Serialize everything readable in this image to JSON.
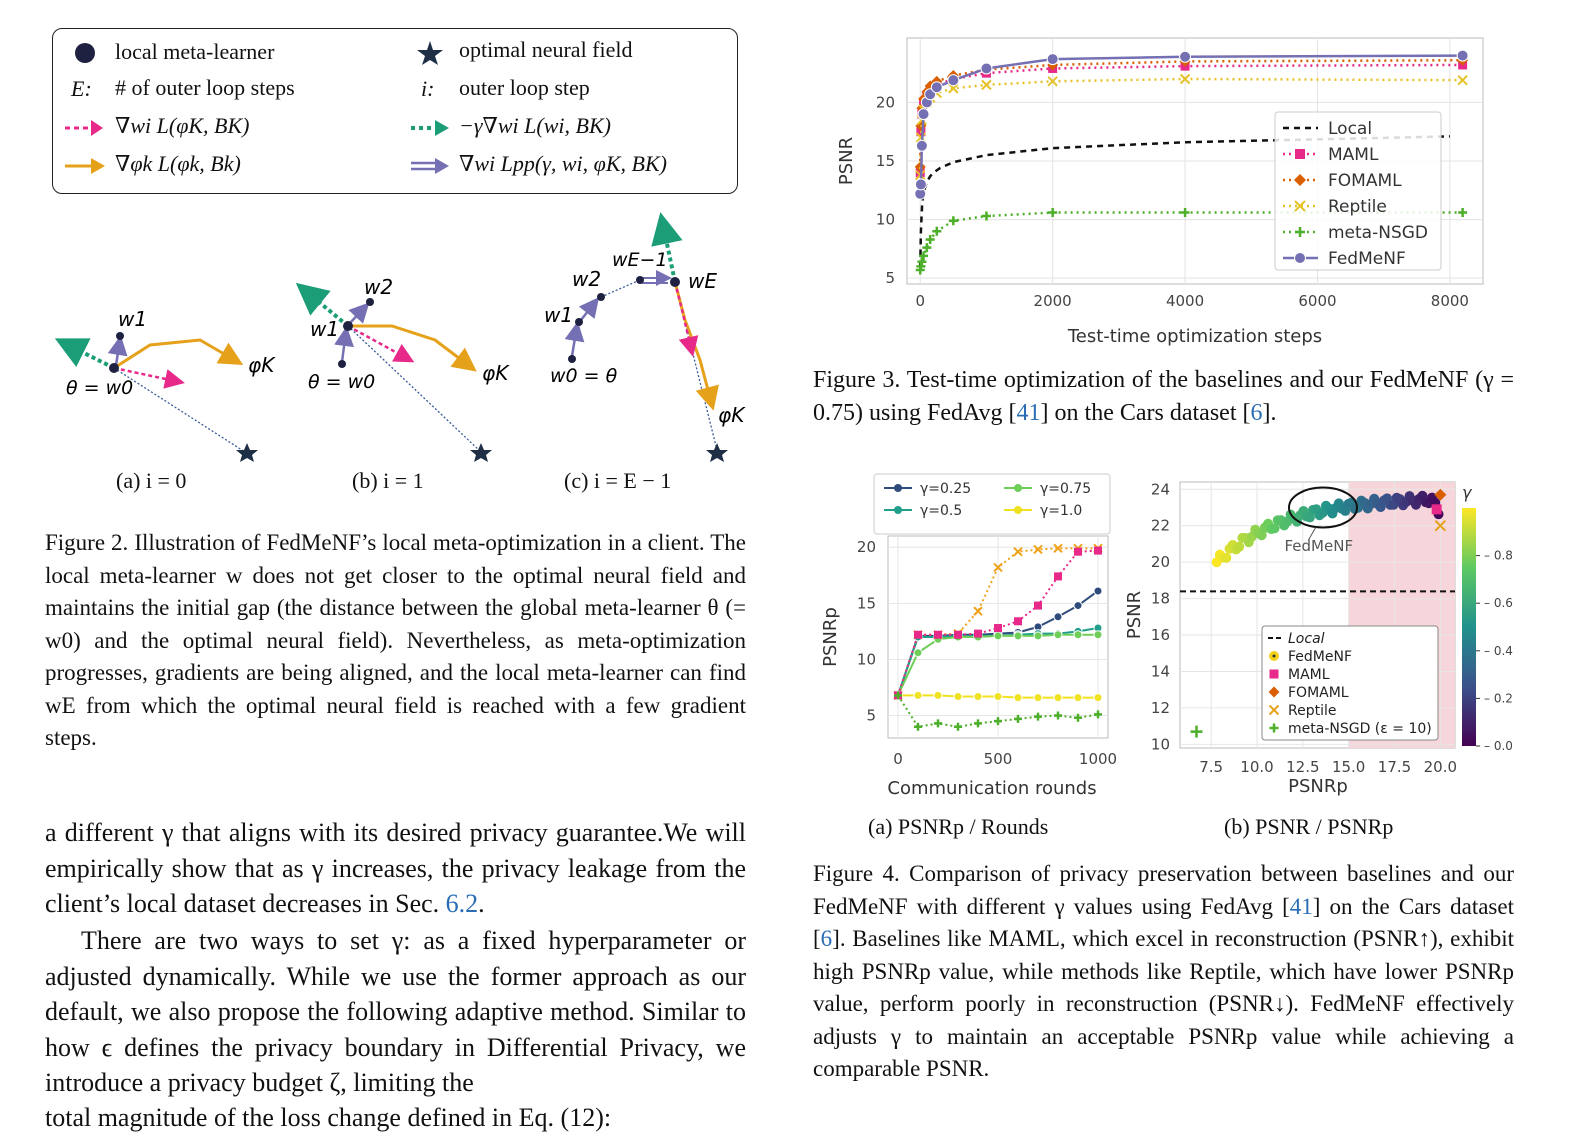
{
  "fig2": {
    "legend": [
      {
        "icon": "dot-icon",
        "label": "local meta-learner"
      },
      {
        "icon": "star-icon",
        "label": "optimal neural field"
      },
      {
        "icon": "E:",
        "label": "# of outer loop steps"
      },
      {
        "icon": "i:",
        "label": "outer loop step"
      },
      {
        "icon": "pink-dashed-arrow-icon",
        "label": "∇wi L(φK, BK)"
      },
      {
        "icon": "green-dotted-arrow-icon",
        "label": "−γ∇wi L(wi, BK)"
      },
      {
        "icon": "orange-arrow-icon",
        "label": "∇φk L(φk, Bk)"
      },
      {
        "icon": "purple-double-arrow-icon",
        "label": "∇wi Lpp(γ, wi, φK, BK)"
      }
    ],
    "panel_labels": {
      "a_w1": "w1",
      "a_theta": "θ = w0",
      "a_phi": "φK",
      "b_w1": "w1",
      "b_w2": "w2",
      "b_theta": "θ = w0",
      "b_phi": "φK",
      "c_w0": "w0 = θ",
      "c_w1": "w1",
      "c_w2": "w2",
      "c_wE1": "wE−1",
      "c_wE": "wE",
      "c_phi": "φK"
    },
    "subcaptions": [
      "(a) i = 0",
      "(b) i = 1",
      "(c) i = E − 1"
    ],
    "caption_label": "Figure 2.",
    "caption": "Illustration of FedMeNF’s local meta-optimization in a client. The local meta-learner w does not get closer to the optimal neural field and maintains the initial gap (the distance between the global meta-learner θ (= w0) and the optimal neural field). Nevertheless, as meta-optimization progresses, gradients are being aligned, and the local meta-learner can find wE from which the optimal neural field is reached with a few gradient steps."
  },
  "body_text": {
    "p1_a": "a different γ that aligns with its desired privacy guarantee.We will empirically show that as γ increases, the privacy leakage from the client’s local dataset decreases in Sec. ",
    "p1_ref": "6.2",
    "p1_b": ".",
    "p2": "There are two ways to set γ: as a fixed hyperparameter or adjusted dynamically. While we use the former approach as our default, we also propose the following adaptive method. Similar to how ϵ defines the privacy boundary in Differential Privacy, we introduce a privacy budget ζ, limiting the",
    "p3_partial": "total magnitude of the loss change defined in Eq. (12):"
  },
  "fig3": {
    "caption_label": "Figure 3.",
    "caption_a": "Test-time optimization of the baselines and our FedMeNF (γ = 0.75) using FedAvg [",
    "ref1": "41",
    "caption_b": "] on the Cars dataset [",
    "ref2": "6",
    "caption_c": "]."
  },
  "fig4": {
    "subcaptions": [
      "(a) PSNRp / Rounds",
      "(b) PSNR / PSNRp"
    ],
    "caption_label": "Figure 4.",
    "caption_a": "Comparison of privacy preservation between baselines and our FedMeNF with different γ values using FedAvg [",
    "ref1": "41",
    "caption_b": "] on the Cars dataset [",
    "ref2": "6",
    "caption_c": "]. Baselines like MAML, which excel in reconstruction (PSNR↑), exhibit high PSNRp value, while methods like Reptile, which have lower PSNRp value, perform poorly in reconstruction (PSNR↓). FedMeNF effectively adjusts γ to maintain an acceptable PSNRp value while achieving a comparable PSNR."
  },
  "chart_data": [
    {
      "id": "fig3",
      "type": "line",
      "xlabel": "Test-time optimization steps",
      "ylabel": "PSNR",
      "xlim": [
        -200,
        8500
      ],
      "ylim": [
        4.5,
        25.5
      ],
      "xticks": [
        0,
        2000,
        4000,
        6000,
        8000
      ],
      "yticks": [
        5,
        10,
        15,
        20
      ],
      "grid": true,
      "legend_position": "right",
      "series": [
        {
          "name": "Local",
          "color": "#111111",
          "dash": "6,5",
          "marker": "none",
          "x": [
            0,
            10,
            30,
            60,
            100,
            150,
            200,
            300,
            500,
            1000,
            2000,
            4000,
            8000
          ],
          "y": [
            6.0,
            9.0,
            11.5,
            12.5,
            13.2,
            13.7,
            14.0,
            14.4,
            14.9,
            15.5,
            16.1,
            16.6,
            17.1
          ]
        },
        {
          "name": "MAML",
          "color": "#e7298a",
          "dash": "2,4",
          "marker": "square",
          "x": [
            0,
            10,
            25,
            50,
            100,
            150,
            250,
            500,
            1000,
            2000,
            4000,
            8192
          ],
          "y": [
            14.0,
            17.5,
            19.0,
            20.0,
            20.5,
            21.0,
            21.5,
            22.0,
            22.5,
            22.9,
            23.1,
            23.2
          ]
        },
        {
          "name": "FOMAML",
          "color": "#d95f02",
          "dash": "2,4",
          "marker": "diamond",
          "x": [
            0,
            10,
            25,
            50,
            100,
            150,
            250,
            500,
            1000,
            2000,
            4000,
            8192
          ],
          "y": [
            14.5,
            18.0,
            19.5,
            20.3,
            20.9,
            21.4,
            21.8,
            22.3,
            22.8,
            23.2,
            23.5,
            23.6
          ]
        },
        {
          "name": "Reptile",
          "color": "#e6c229",
          "dash": "2,4",
          "marker": "x",
          "x": [
            0,
            10,
            25,
            50,
            100,
            150,
            250,
            500,
            1000,
            2000,
            4000,
            8192
          ],
          "y": [
            13.8,
            17.0,
            18.5,
            19.4,
            20.0,
            20.4,
            20.8,
            21.2,
            21.5,
            21.8,
            22.0,
            21.9
          ]
        },
        {
          "name": "meta-NSGD",
          "color": "#4daf2a",
          "dash": "2,4",
          "marker": "plus",
          "x": [
            0,
            10,
            25,
            50,
            100,
            150,
            250,
            500,
            1000,
            2000,
            4000,
            8192
          ],
          "y": [
            5.7,
            6.0,
            6.4,
            6.9,
            7.6,
            8.3,
            9.0,
            9.9,
            10.3,
            10.6,
            10.6,
            10.6
          ]
        },
        {
          "name": "FedMeNF",
          "color": "#7570b3",
          "dash": "",
          "marker": "circle",
          "x": [
            0,
            10,
            25,
            50,
            100,
            150,
            250,
            500,
            1000,
            2000,
            4000,
            8192
          ],
          "y": [
            12.2,
            13.0,
            16.3,
            19.0,
            20.0,
            20.7,
            21.3,
            21.9,
            22.9,
            23.7,
            23.9,
            24.0
          ]
        }
      ]
    },
    {
      "id": "fig4a",
      "type": "line",
      "xlabel": "Communication rounds",
      "ylabel": "PSNRp",
      "xlim": [
        -50,
        1050
      ],
      "ylim": [
        3,
        21
      ],
      "xticks": [
        0,
        500,
        1000
      ],
      "yticks": [
        5,
        10,
        15,
        20
      ],
      "grid": true,
      "legend_position": "top",
      "series": [
        {
          "name": "γ=0.25",
          "color": "#2f4b7c",
          "x": [
            0,
            100,
            200,
            300,
            400,
            500,
            600,
            700,
            800,
            900,
            1000
          ],
          "y": [
            6.8,
            12.1,
            12.1,
            12.2,
            12.2,
            12.3,
            12.4,
            12.9,
            13.8,
            14.8,
            16.1
          ]
        },
        {
          "name": "γ=0.5",
          "color": "#1f9e89",
          "x": [
            0,
            100,
            200,
            300,
            400,
            500,
            600,
            700,
            800,
            900,
            1000
          ],
          "y": [
            6.8,
            12.0,
            12.0,
            12.1,
            12.1,
            12.1,
            12.2,
            12.3,
            12.3,
            12.5,
            12.8
          ]
        },
        {
          "name": "γ=0.75",
          "color": "#6ece58",
          "x": [
            0,
            100,
            200,
            300,
            400,
            500,
            600,
            700,
            800,
            900,
            1000
          ],
          "y": [
            6.8,
            10.6,
            11.8,
            12.0,
            12.0,
            12.1,
            12.1,
            12.1,
            12.2,
            12.2,
            12.2
          ]
        },
        {
          "name": "γ=1.0",
          "color": "#f0e221",
          "x": [
            0,
            100,
            200,
            300,
            400,
            500,
            600,
            700,
            800,
            900,
            1000
          ],
          "y": [
            6.8,
            6.8,
            6.8,
            6.7,
            6.7,
            6.7,
            6.6,
            6.6,
            6.6,
            6.6,
            6.6
          ]
        },
        {
          "name": "",
          "color": "#f0a21b",
          "dash": "2,3",
          "marker": "x",
          "x": [
            0,
            100,
            200,
            300,
            400,
            500,
            600,
            700,
            800,
            900,
            1000
          ],
          "y": [
            6.8,
            12.2,
            12.2,
            12.3,
            14.3,
            18.2,
            19.6,
            19.8,
            19.9,
            19.9,
            19.9
          ]
        },
        {
          "name": "",
          "color": "#e7298a",
          "dash": "2,3",
          "marker": "square",
          "x": [
            0,
            100,
            200,
            300,
            400,
            500,
            600,
            700,
            800,
            900,
            1000
          ],
          "y": [
            6.8,
            12.2,
            12.2,
            12.2,
            12.3,
            12.8,
            13.4,
            14.8,
            17.4,
            19.6,
            19.7
          ]
        },
        {
          "name": "",
          "color": "#4daf2a",
          "dash": "2,3",
          "marker": "plus",
          "x": [
            0,
            100,
            200,
            300,
            400,
            500,
            600,
            700,
            800,
            900,
            1000
          ],
          "y": [
            6.8,
            4.0,
            4.3,
            4.0,
            4.3,
            4.5,
            4.7,
            4.9,
            5.0,
            4.8,
            5.1
          ]
        }
      ]
    },
    {
      "id": "fig4b",
      "type": "scatter",
      "xlabel": "PSNRp",
      "ylabel": "PSNR",
      "xlim": [
        5.8,
        20.8
      ],
      "ylim": [
        9.8,
        24.4
      ],
      "xticks": [
        7.5,
        10.0,
        12.5,
        15.0,
        17.5,
        20.0
      ],
      "yticks": [
        10,
        12,
        14,
        16,
        18,
        20,
        22,
        24
      ],
      "grid": true,
      "colorbar_label": "γ",
      "colorbar_ticks": [
        0.0,
        0.2,
        0.4,
        0.6,
        0.8
      ],
      "shaded_region": [
        15.0,
        20.8
      ],
      "local_line": 18.4,
      "annotation": "FedMeNF",
      "legend": [
        "Local",
        "FedMeNF",
        "MAML",
        "FOMAML",
        "Reptile",
        "meta-NSGD (ε = 10)"
      ],
      "points": {
        "MAML": [
          [
            19.8,
            22.9
          ]
        ],
        "FOMAML": [
          [
            20.0,
            23.7
          ]
        ],
        "Reptile": [
          [
            20.0,
            22.0
          ]
        ],
        "meta-NSGD": [
          [
            6.7,
            10.7
          ]
        ]
      }
    }
  ]
}
